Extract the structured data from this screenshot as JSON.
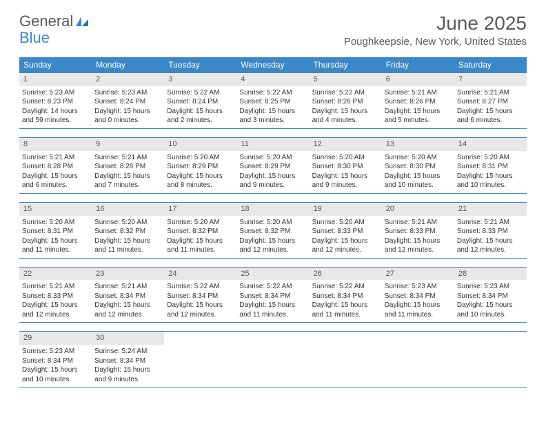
{
  "logo": {
    "text1": "General",
    "text2": "Blue"
  },
  "title": "June 2025",
  "location": "Poughkeepsie, New York, United States",
  "colors": {
    "header_bg": "#3b87c8",
    "daynum_bg": "#e8e8e8",
    "text": "#333333",
    "muted": "#5a5a5a"
  },
  "day_labels": [
    "Sunday",
    "Monday",
    "Tuesday",
    "Wednesday",
    "Thursday",
    "Friday",
    "Saturday"
  ],
  "weeks": [
    [
      {
        "n": "1",
        "sr": "Sunrise: 5:23 AM",
        "ss": "Sunset: 8:23 PM",
        "dl": "Daylight: 14 hours and 59 minutes."
      },
      {
        "n": "2",
        "sr": "Sunrise: 5:23 AM",
        "ss": "Sunset: 8:24 PM",
        "dl": "Daylight: 15 hours and 0 minutes."
      },
      {
        "n": "3",
        "sr": "Sunrise: 5:22 AM",
        "ss": "Sunset: 8:24 PM",
        "dl": "Daylight: 15 hours and 2 minutes."
      },
      {
        "n": "4",
        "sr": "Sunrise: 5:22 AM",
        "ss": "Sunset: 8:25 PM",
        "dl": "Daylight: 15 hours and 3 minutes."
      },
      {
        "n": "5",
        "sr": "Sunrise: 5:22 AM",
        "ss": "Sunset: 8:26 PM",
        "dl": "Daylight: 15 hours and 4 minutes."
      },
      {
        "n": "6",
        "sr": "Sunrise: 5:21 AM",
        "ss": "Sunset: 8:26 PM",
        "dl": "Daylight: 15 hours and 5 minutes."
      },
      {
        "n": "7",
        "sr": "Sunrise: 5:21 AM",
        "ss": "Sunset: 8:27 PM",
        "dl": "Daylight: 15 hours and 6 minutes."
      }
    ],
    [
      {
        "n": "8",
        "sr": "Sunrise: 5:21 AM",
        "ss": "Sunset: 8:28 PM",
        "dl": "Daylight: 15 hours and 6 minutes."
      },
      {
        "n": "9",
        "sr": "Sunrise: 5:21 AM",
        "ss": "Sunset: 8:28 PM",
        "dl": "Daylight: 15 hours and 7 minutes."
      },
      {
        "n": "10",
        "sr": "Sunrise: 5:20 AM",
        "ss": "Sunset: 8:29 PM",
        "dl": "Daylight: 15 hours and 8 minutes."
      },
      {
        "n": "11",
        "sr": "Sunrise: 5:20 AM",
        "ss": "Sunset: 8:29 PM",
        "dl": "Daylight: 15 hours and 9 minutes."
      },
      {
        "n": "12",
        "sr": "Sunrise: 5:20 AM",
        "ss": "Sunset: 8:30 PM",
        "dl": "Daylight: 15 hours and 9 minutes."
      },
      {
        "n": "13",
        "sr": "Sunrise: 5:20 AM",
        "ss": "Sunset: 8:30 PM",
        "dl": "Daylight: 15 hours and 10 minutes."
      },
      {
        "n": "14",
        "sr": "Sunrise: 5:20 AM",
        "ss": "Sunset: 8:31 PM",
        "dl": "Daylight: 15 hours and 10 minutes."
      }
    ],
    [
      {
        "n": "15",
        "sr": "Sunrise: 5:20 AM",
        "ss": "Sunset: 8:31 PM",
        "dl": "Daylight: 15 hours and 11 minutes."
      },
      {
        "n": "16",
        "sr": "Sunrise: 5:20 AM",
        "ss": "Sunset: 8:32 PM",
        "dl": "Daylight: 15 hours and 11 minutes."
      },
      {
        "n": "17",
        "sr": "Sunrise: 5:20 AM",
        "ss": "Sunset: 8:32 PM",
        "dl": "Daylight: 15 hours and 11 minutes."
      },
      {
        "n": "18",
        "sr": "Sunrise: 5:20 AM",
        "ss": "Sunset: 8:32 PM",
        "dl": "Daylight: 15 hours and 12 minutes."
      },
      {
        "n": "19",
        "sr": "Sunrise: 5:20 AM",
        "ss": "Sunset: 8:33 PM",
        "dl": "Daylight: 15 hours and 12 minutes."
      },
      {
        "n": "20",
        "sr": "Sunrise: 5:21 AM",
        "ss": "Sunset: 8:33 PM",
        "dl": "Daylight: 15 hours and 12 minutes."
      },
      {
        "n": "21",
        "sr": "Sunrise: 5:21 AM",
        "ss": "Sunset: 8:33 PM",
        "dl": "Daylight: 15 hours and 12 minutes."
      }
    ],
    [
      {
        "n": "22",
        "sr": "Sunrise: 5:21 AM",
        "ss": "Sunset: 8:33 PM",
        "dl": "Daylight: 15 hours and 12 minutes."
      },
      {
        "n": "23",
        "sr": "Sunrise: 5:21 AM",
        "ss": "Sunset: 8:34 PM",
        "dl": "Daylight: 15 hours and 12 minutes."
      },
      {
        "n": "24",
        "sr": "Sunrise: 5:22 AM",
        "ss": "Sunset: 8:34 PM",
        "dl": "Daylight: 15 hours and 12 minutes."
      },
      {
        "n": "25",
        "sr": "Sunrise: 5:22 AM",
        "ss": "Sunset: 8:34 PM",
        "dl": "Daylight: 15 hours and 11 minutes."
      },
      {
        "n": "26",
        "sr": "Sunrise: 5:22 AM",
        "ss": "Sunset: 8:34 PM",
        "dl": "Daylight: 15 hours and 11 minutes."
      },
      {
        "n": "27",
        "sr": "Sunrise: 5:23 AM",
        "ss": "Sunset: 8:34 PM",
        "dl": "Daylight: 15 hours and 11 minutes."
      },
      {
        "n": "28",
        "sr": "Sunrise: 5:23 AM",
        "ss": "Sunset: 8:34 PM",
        "dl": "Daylight: 15 hours and 10 minutes."
      }
    ],
    [
      {
        "n": "29",
        "sr": "Sunrise: 5:23 AM",
        "ss": "Sunset: 8:34 PM",
        "dl": "Daylight: 15 hours and 10 minutes."
      },
      {
        "n": "30",
        "sr": "Sunrise: 5:24 AM",
        "ss": "Sunset: 8:34 PM",
        "dl": "Daylight: 15 hours and 9 minutes."
      },
      null,
      null,
      null,
      null,
      null
    ]
  ]
}
